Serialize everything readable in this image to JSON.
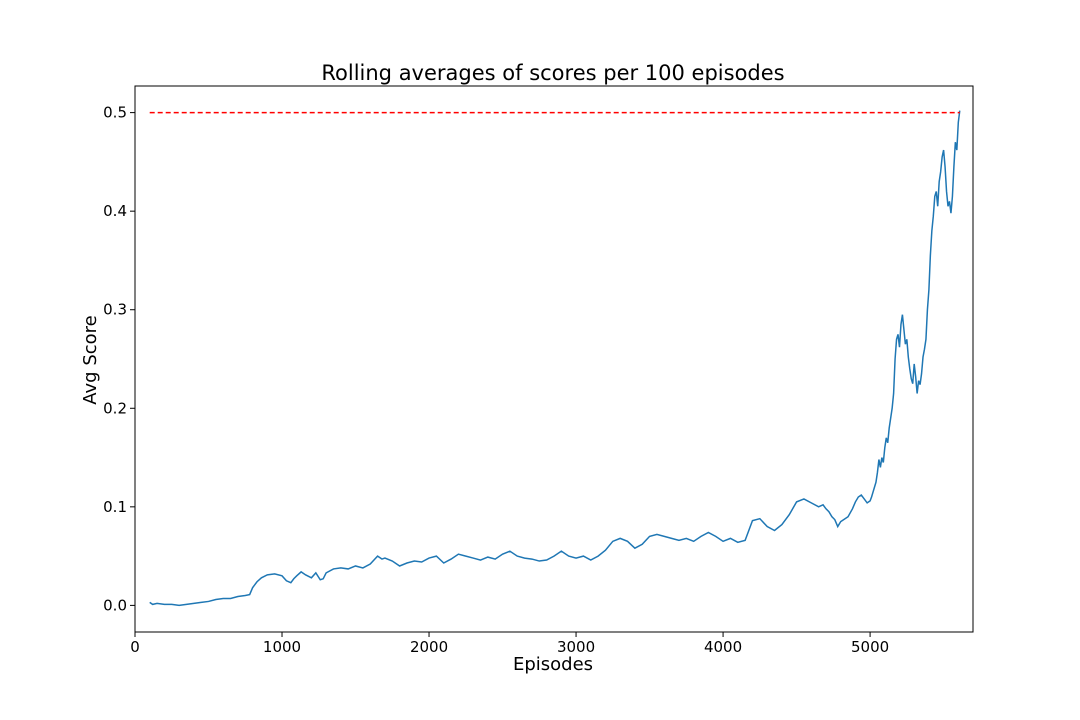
{
  "chart_data": {
    "type": "line",
    "title": "Rolling averages of scores per 100 episodes",
    "xlabel": "Episodes",
    "ylabel": "Avg Score",
    "xlim": [
      0,
      5700
    ],
    "ylim": [
      -0.027,
      0.527
    ],
    "xticks": [
      0,
      1000,
      2000,
      3000,
      4000,
      5000
    ],
    "xtick_labels": [
      "0",
      "1000",
      "2000",
      "3000",
      "4000",
      "5000"
    ],
    "yticks": [
      0.0,
      0.1,
      0.2,
      0.3,
      0.4,
      0.5
    ],
    "ytick_labels": [
      "0.0",
      "0.1",
      "0.2",
      "0.3",
      "0.4",
      "0.5"
    ],
    "grid": false,
    "series": [
      {
        "color": "#1f77b4",
        "x": [
          100,
          120,
          150,
          200,
          250,
          300,
          350,
          400,
          450,
          500,
          550,
          600,
          650,
          700,
          750,
          780,
          800,
          830,
          860,
          900,
          950,
          1000,
          1030,
          1060,
          1080,
          1100,
          1130,
          1160,
          1200,
          1230,
          1260,
          1280,
          1300,
          1350,
          1400,
          1450,
          1500,
          1550,
          1600,
          1650,
          1680,
          1700,
          1750,
          1800,
          1850,
          1900,
          1950,
          2000,
          2050,
          2100,
          2150,
          2200,
          2250,
          2300,
          2350,
          2400,
          2450,
          2500,
          2550,
          2600,
          2650,
          2700,
          2750,
          2800,
          2850,
          2900,
          2950,
          3000,
          3050,
          3100,
          3150,
          3200,
          3250,
          3300,
          3350,
          3400,
          3450,
          3500,
          3550,
          3600,
          3650,
          3700,
          3750,
          3800,
          3850,
          3900,
          3950,
          4000,
          4050,
          4100,
          4150,
          4200,
          4250,
          4300,
          4350,
          4400,
          4450,
          4500,
          4550,
          4600,
          4650,
          4680,
          4700,
          4720,
          4740,
          4760,
          4780,
          4800,
          4850,
          4880,
          4900,
          4920,
          4940,
          4960,
          4980,
          5000,
          5010,
          5020,
          5030,
          5040,
          5050,
          5060,
          5070,
          5080,
          5090,
          5100,
          5110,
          5120,
          5130,
          5140,
          5150,
          5160,
          5170,
          5180,
          5190,
          5200,
          5210,
          5220,
          5230,
          5240,
          5250,
          5260,
          5270,
          5280,
          5290,
          5300,
          5310,
          5320,
          5330,
          5340,
          5350,
          5360,
          5370,
          5380,
          5390,
          5400,
          5410,
          5420,
          5430,
          5440,
          5450,
          5460,
          5470,
          5480,
          5490,
          5500,
          5510,
          5520,
          5530,
          5540,
          5550,
          5560,
          5570,
          5580,
          5590,
          5600,
          5610
        ],
        "y": [
          0.003,
          0.001,
          0.002,
          0.001,
          0.001,
          0.0,
          0.001,
          0.002,
          0.003,
          0.004,
          0.006,
          0.007,
          0.007,
          0.009,
          0.01,
          0.011,
          0.018,
          0.024,
          0.028,
          0.031,
          0.032,
          0.03,
          0.025,
          0.023,
          0.027,
          0.03,
          0.034,
          0.031,
          0.028,
          0.033,
          0.026,
          0.027,
          0.033,
          0.037,
          0.038,
          0.037,
          0.04,
          0.038,
          0.042,
          0.05,
          0.047,
          0.048,
          0.045,
          0.04,
          0.043,
          0.045,
          0.044,
          0.048,
          0.05,
          0.043,
          0.047,
          0.052,
          0.05,
          0.048,
          0.046,
          0.049,
          0.047,
          0.052,
          0.055,
          0.05,
          0.048,
          0.047,
          0.045,
          0.046,
          0.05,
          0.055,
          0.05,
          0.048,
          0.05,
          0.046,
          0.05,
          0.056,
          0.065,
          0.068,
          0.065,
          0.058,
          0.062,
          0.07,
          0.072,
          0.07,
          0.068,
          0.066,
          0.068,
          0.065,
          0.07,
          0.074,
          0.07,
          0.065,
          0.068,
          0.064,
          0.066,
          0.086,
          0.088,
          0.08,
          0.076,
          0.082,
          0.092,
          0.105,
          0.108,
          0.104,
          0.1,
          0.102,
          0.098,
          0.095,
          0.09,
          0.087,
          0.08,
          0.085,
          0.09,
          0.098,
          0.105,
          0.11,
          0.112,
          0.108,
          0.104,
          0.106,
          0.11,
          0.115,
          0.12,
          0.125,
          0.135,
          0.148,
          0.14,
          0.15,
          0.145,
          0.16,
          0.17,
          0.165,
          0.18,
          0.19,
          0.2,
          0.215,
          0.25,
          0.27,
          0.275,
          0.262,
          0.285,
          0.295,
          0.28,
          0.265,
          0.27,
          0.252,
          0.24,
          0.23,
          0.225,
          0.245,
          0.232,
          0.215,
          0.228,
          0.224,
          0.235,
          0.252,
          0.26,
          0.27,
          0.3,
          0.32,
          0.355,
          0.38,
          0.395,
          0.415,
          0.42,
          0.405,
          0.43,
          0.44,
          0.455,
          0.462,
          0.445,
          0.42,
          0.405,
          0.41,
          0.398,
          0.415,
          0.445,
          0.47,
          0.462,
          0.49,
          0.502
        ]
      },
      {
        "kind": "hline",
        "color": "#ff0000",
        "style": "dashed",
        "x": [
          100,
          5610
        ],
        "y": [
          0.5,
          0.5
        ]
      }
    ]
  }
}
